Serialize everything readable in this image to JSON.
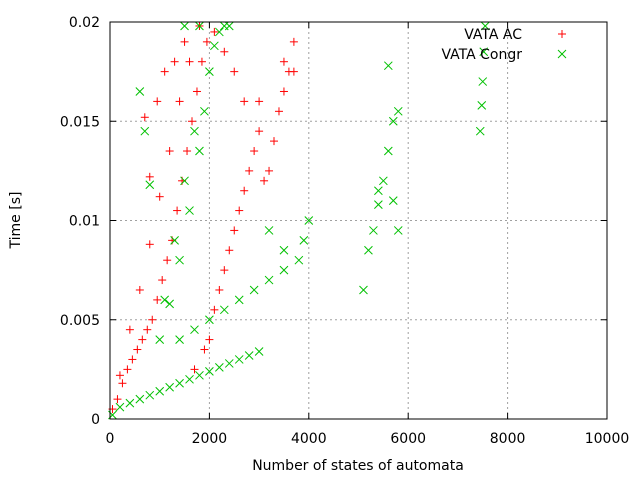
{
  "chart_data": {
    "type": "scatter",
    "title": "",
    "xlabel": "Number of states of automata",
    "ylabel": "Time [s]",
    "xlim": [
      0,
      10000
    ],
    "ylim": [
      0,
      0.02
    ],
    "xticks": [
      0,
      2000,
      4000,
      6000,
      8000,
      10000
    ],
    "xtick_labels": [
      "0",
      "2000",
      "4000",
      "6000",
      "8000",
      "10000"
    ],
    "yticks": [
      0,
      0.005,
      0.01,
      0.015,
      0.02
    ],
    "ytick_labels": [
      "0",
      "0.005",
      "0.01",
      "0.015",
      "0.02"
    ],
    "grid": true,
    "legend_position": "top-right",
    "series": [
      {
        "name": "VATA AC",
        "marker": "plus",
        "color": "#ff0000",
        "points": [
          [
            50,
            0.0005
          ],
          [
            150,
            0.001
          ],
          [
            250,
            0.0018
          ],
          [
            350,
            0.0025
          ],
          [
            450,
            0.003
          ],
          [
            550,
            0.0035
          ],
          [
            650,
            0.004
          ],
          [
            750,
            0.0045
          ],
          [
            850,
            0.005
          ],
          [
            950,
            0.006
          ],
          [
            1050,
            0.007
          ],
          [
            1150,
            0.008
          ],
          [
            1250,
            0.009
          ],
          [
            1350,
            0.0105
          ],
          [
            1450,
            0.012
          ],
          [
            1550,
            0.0135
          ],
          [
            1650,
            0.015
          ],
          [
            1750,
            0.0165
          ],
          [
            1850,
            0.018
          ],
          [
            1950,
            0.019
          ],
          [
            200,
            0.0022
          ],
          [
            400,
            0.0045
          ],
          [
            600,
            0.0065
          ],
          [
            800,
            0.0088
          ],
          [
            1000,
            0.0112
          ],
          [
            1200,
            0.0135
          ],
          [
            1400,
            0.016
          ],
          [
            1600,
            0.018
          ],
          [
            1800,
            0.0198
          ],
          [
            700,
            0.0152
          ],
          [
            800,
            0.0122
          ],
          [
            950,
            0.016
          ],
          [
            1100,
            0.0175
          ],
          [
            1300,
            0.018
          ],
          [
            1500,
            0.019
          ],
          [
            2100,
            0.0195
          ],
          [
            2300,
            0.0185
          ],
          [
            1700,
            0.0025
          ],
          [
            1900,
            0.0035
          ],
          [
            2000,
            0.004
          ],
          [
            2100,
            0.0055
          ],
          [
            2200,
            0.0065
          ],
          [
            2300,
            0.0075
          ],
          [
            2400,
            0.0085
          ],
          [
            2500,
            0.0095
          ],
          [
            2600,
            0.0105
          ],
          [
            2700,
            0.0115
          ],
          [
            2800,
            0.0125
          ],
          [
            2900,
            0.0135
          ],
          [
            3000,
            0.0145
          ],
          [
            3100,
            0.012
          ],
          [
            3200,
            0.0125
          ],
          [
            3300,
            0.014
          ],
          [
            3400,
            0.0155
          ],
          [
            3500,
            0.0165
          ],
          [
            3600,
            0.0175
          ],
          [
            3700,
            0.019
          ],
          [
            3500,
            0.018
          ],
          [
            3700,
            0.0175
          ],
          [
            2500,
            0.0175
          ],
          [
            2700,
            0.016
          ],
          [
            3000,
            0.016
          ]
        ]
      },
      {
        "name": "VATA Congr",
        "marker": "cross",
        "color": "#00c000",
        "points": [
          [
            50,
            0.0002
          ],
          [
            200,
            0.0006
          ],
          [
            400,
            0.0008
          ],
          [
            600,
            0.001
          ],
          [
            800,
            0.0012
          ],
          [
            1000,
            0.0014
          ],
          [
            1200,
            0.0016
          ],
          [
            1400,
            0.0018
          ],
          [
            1600,
            0.002
          ],
          [
            1800,
            0.0022
          ],
          [
            2000,
            0.0024
          ],
          [
            2200,
            0.0026
          ],
          [
            2400,
            0.0028
          ],
          [
            2600,
            0.003
          ],
          [
            2800,
            0.0032
          ],
          [
            3000,
            0.0034
          ],
          [
            1400,
            0.004
          ],
          [
            1700,
            0.0045
          ],
          [
            2000,
            0.005
          ],
          [
            2300,
            0.0055
          ],
          [
            2600,
            0.006
          ],
          [
            2900,
            0.0065
          ],
          [
            3200,
            0.007
          ],
          [
            3500,
            0.0075
          ],
          [
            3800,
            0.008
          ],
          [
            3900,
            0.009
          ],
          [
            4000,
            0.01
          ],
          [
            3200,
            0.0095
          ],
          [
            3500,
            0.0085
          ],
          [
            1200,
            0.0058
          ],
          [
            1400,
            0.008
          ],
          [
            1600,
            0.0105
          ],
          [
            1800,
            0.0135
          ],
          [
            1900,
            0.0155
          ],
          [
            2000,
            0.0175
          ],
          [
            2100,
            0.0188
          ],
          [
            2200,
            0.0195
          ],
          [
            2300,
            0.0198
          ],
          [
            2400,
            0.0198
          ],
          [
            1000,
            0.004
          ],
          [
            1100,
            0.006
          ],
          [
            1300,
            0.009
          ],
          [
            1500,
            0.012
          ],
          [
            1700,
            0.0145
          ],
          [
            600,
            0.0165
          ],
          [
            700,
            0.0145
          ],
          [
            800,
            0.0118
          ],
          [
            1500,
            0.0198
          ],
          [
            1800,
            0.0198
          ],
          [
            5100,
            0.0065
          ],
          [
            5200,
            0.0085
          ],
          [
            5300,
            0.0095
          ],
          [
            5400,
            0.0108
          ],
          [
            5500,
            0.012
          ],
          [
            5600,
            0.0135
          ],
          [
            5700,
            0.015
          ],
          [
            5800,
            0.0155
          ],
          [
            5600,
            0.0178
          ],
          [
            5400,
            0.0115
          ],
          [
            5800,
            0.0095
          ],
          [
            5700,
            0.011
          ],
          [
            7450,
            0.0145
          ],
          [
            7480,
            0.0158
          ],
          [
            7500,
            0.017
          ],
          [
            7520,
            0.0185
          ],
          [
            7550,
            0.0198
          ]
        ]
      }
    ]
  }
}
